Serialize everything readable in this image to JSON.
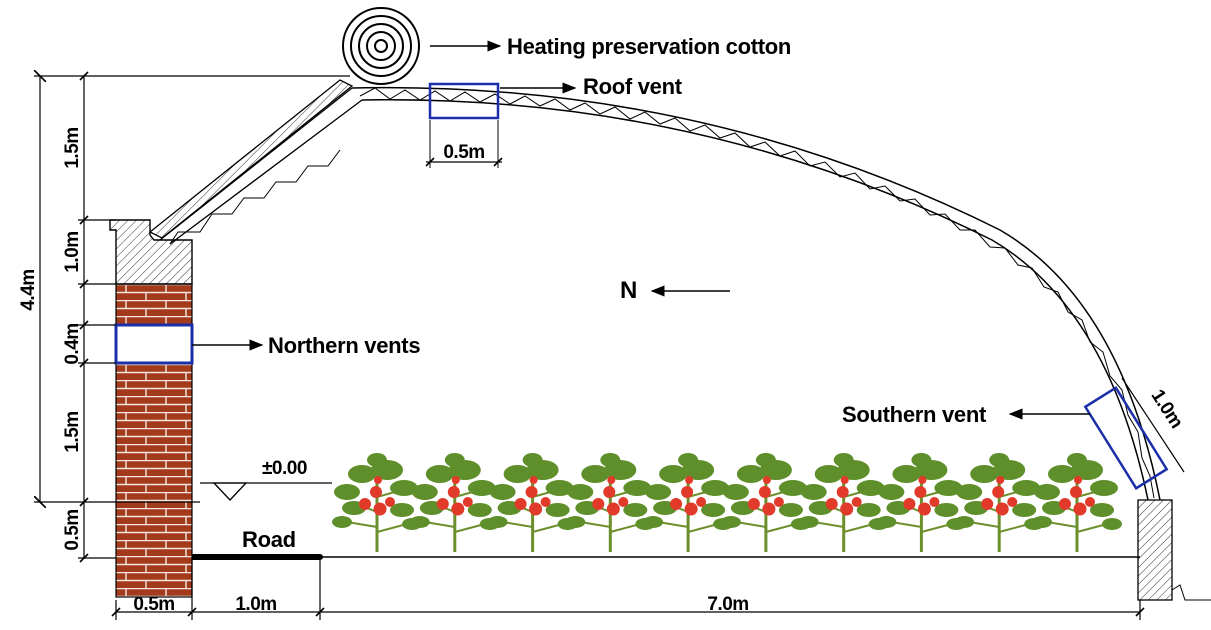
{
  "labels": {
    "heating_cotton": "Heating preservation cotton",
    "roof_vent": "Roof vent",
    "northern_vents": "Northern vents",
    "southern_vent": "Southern vent",
    "north": "N",
    "road": "Road",
    "elevation": "±0.00"
  },
  "dimensions": {
    "total_height": "4.4m",
    "upper_roof": "1.5m",
    "wall_cap": "1.0m",
    "vent_height": "0.4m",
    "wall_lower": "1.5m",
    "below_ground": "0.5m",
    "wall_width": "0.5m",
    "road_width": "1.0m",
    "span": "7.0m",
    "roof_vent_width": "0.5m",
    "southern_vent_length": "1.0m"
  },
  "colors": {
    "vent_outline": "#1a2fa8",
    "brick": "#a33a1c",
    "brick_mortar": "#f4e8e0",
    "foliage": "#5f8f2a",
    "tomato": "#e23a2a"
  },
  "plants": {
    "count": 10
  }
}
